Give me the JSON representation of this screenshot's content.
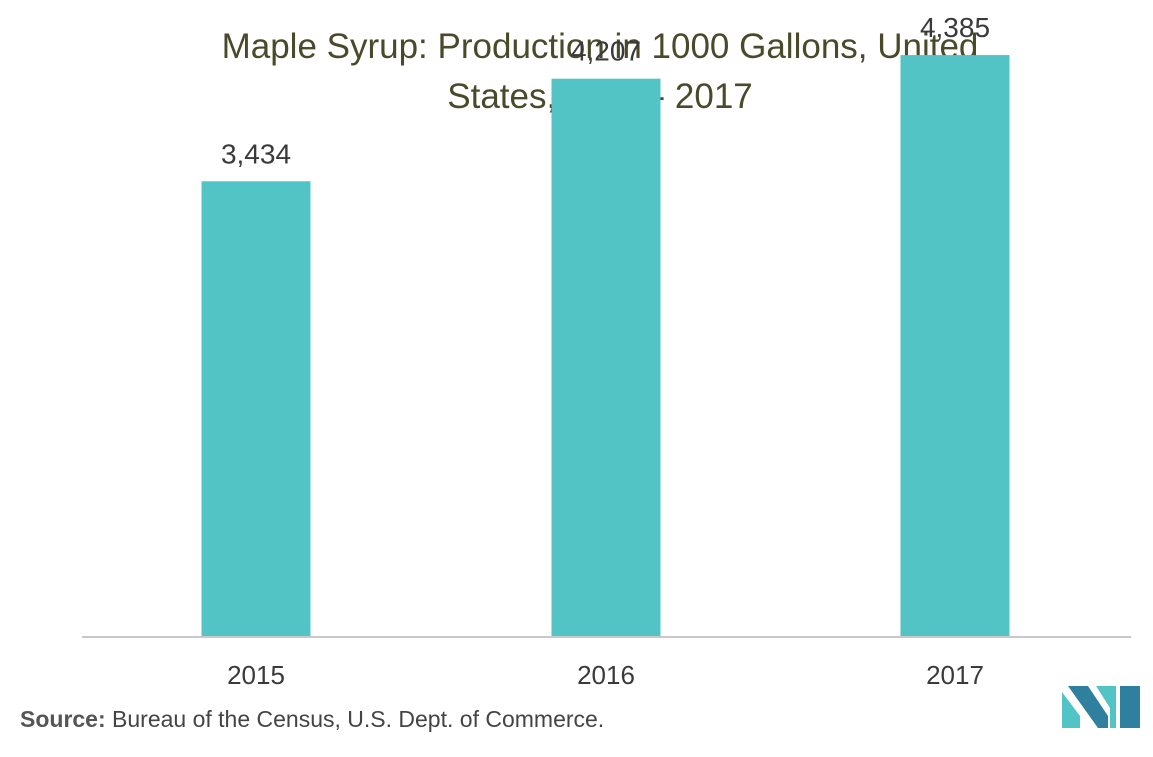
{
  "chart_data": {
    "type": "bar",
    "title_lines": [
      "Maple Syrup: Production in 1000 Gallons, United",
      "States, 2015 - 2017"
    ],
    "categories": [
      "2015",
      "2016",
      "2017"
    ],
    "values": [
      3434,
      4207,
      4385
    ],
    "value_labels": [
      "3,434",
      "4,207",
      "4,385"
    ],
    "ylim": [
      0,
      4800
    ],
    "grid": false,
    "bar_color": "#52c4c6",
    "axis_color": "#c8c8c8"
  },
  "footer": {
    "source_label": "Source:",
    "source_text": " Bureau of the Census, U.S. Dept. of Commerce."
  },
  "logo": {
    "icon": "mordor-intelligence-logo-icon",
    "color_dark": "#2f7f9e",
    "color_light": "#52c4c6"
  }
}
